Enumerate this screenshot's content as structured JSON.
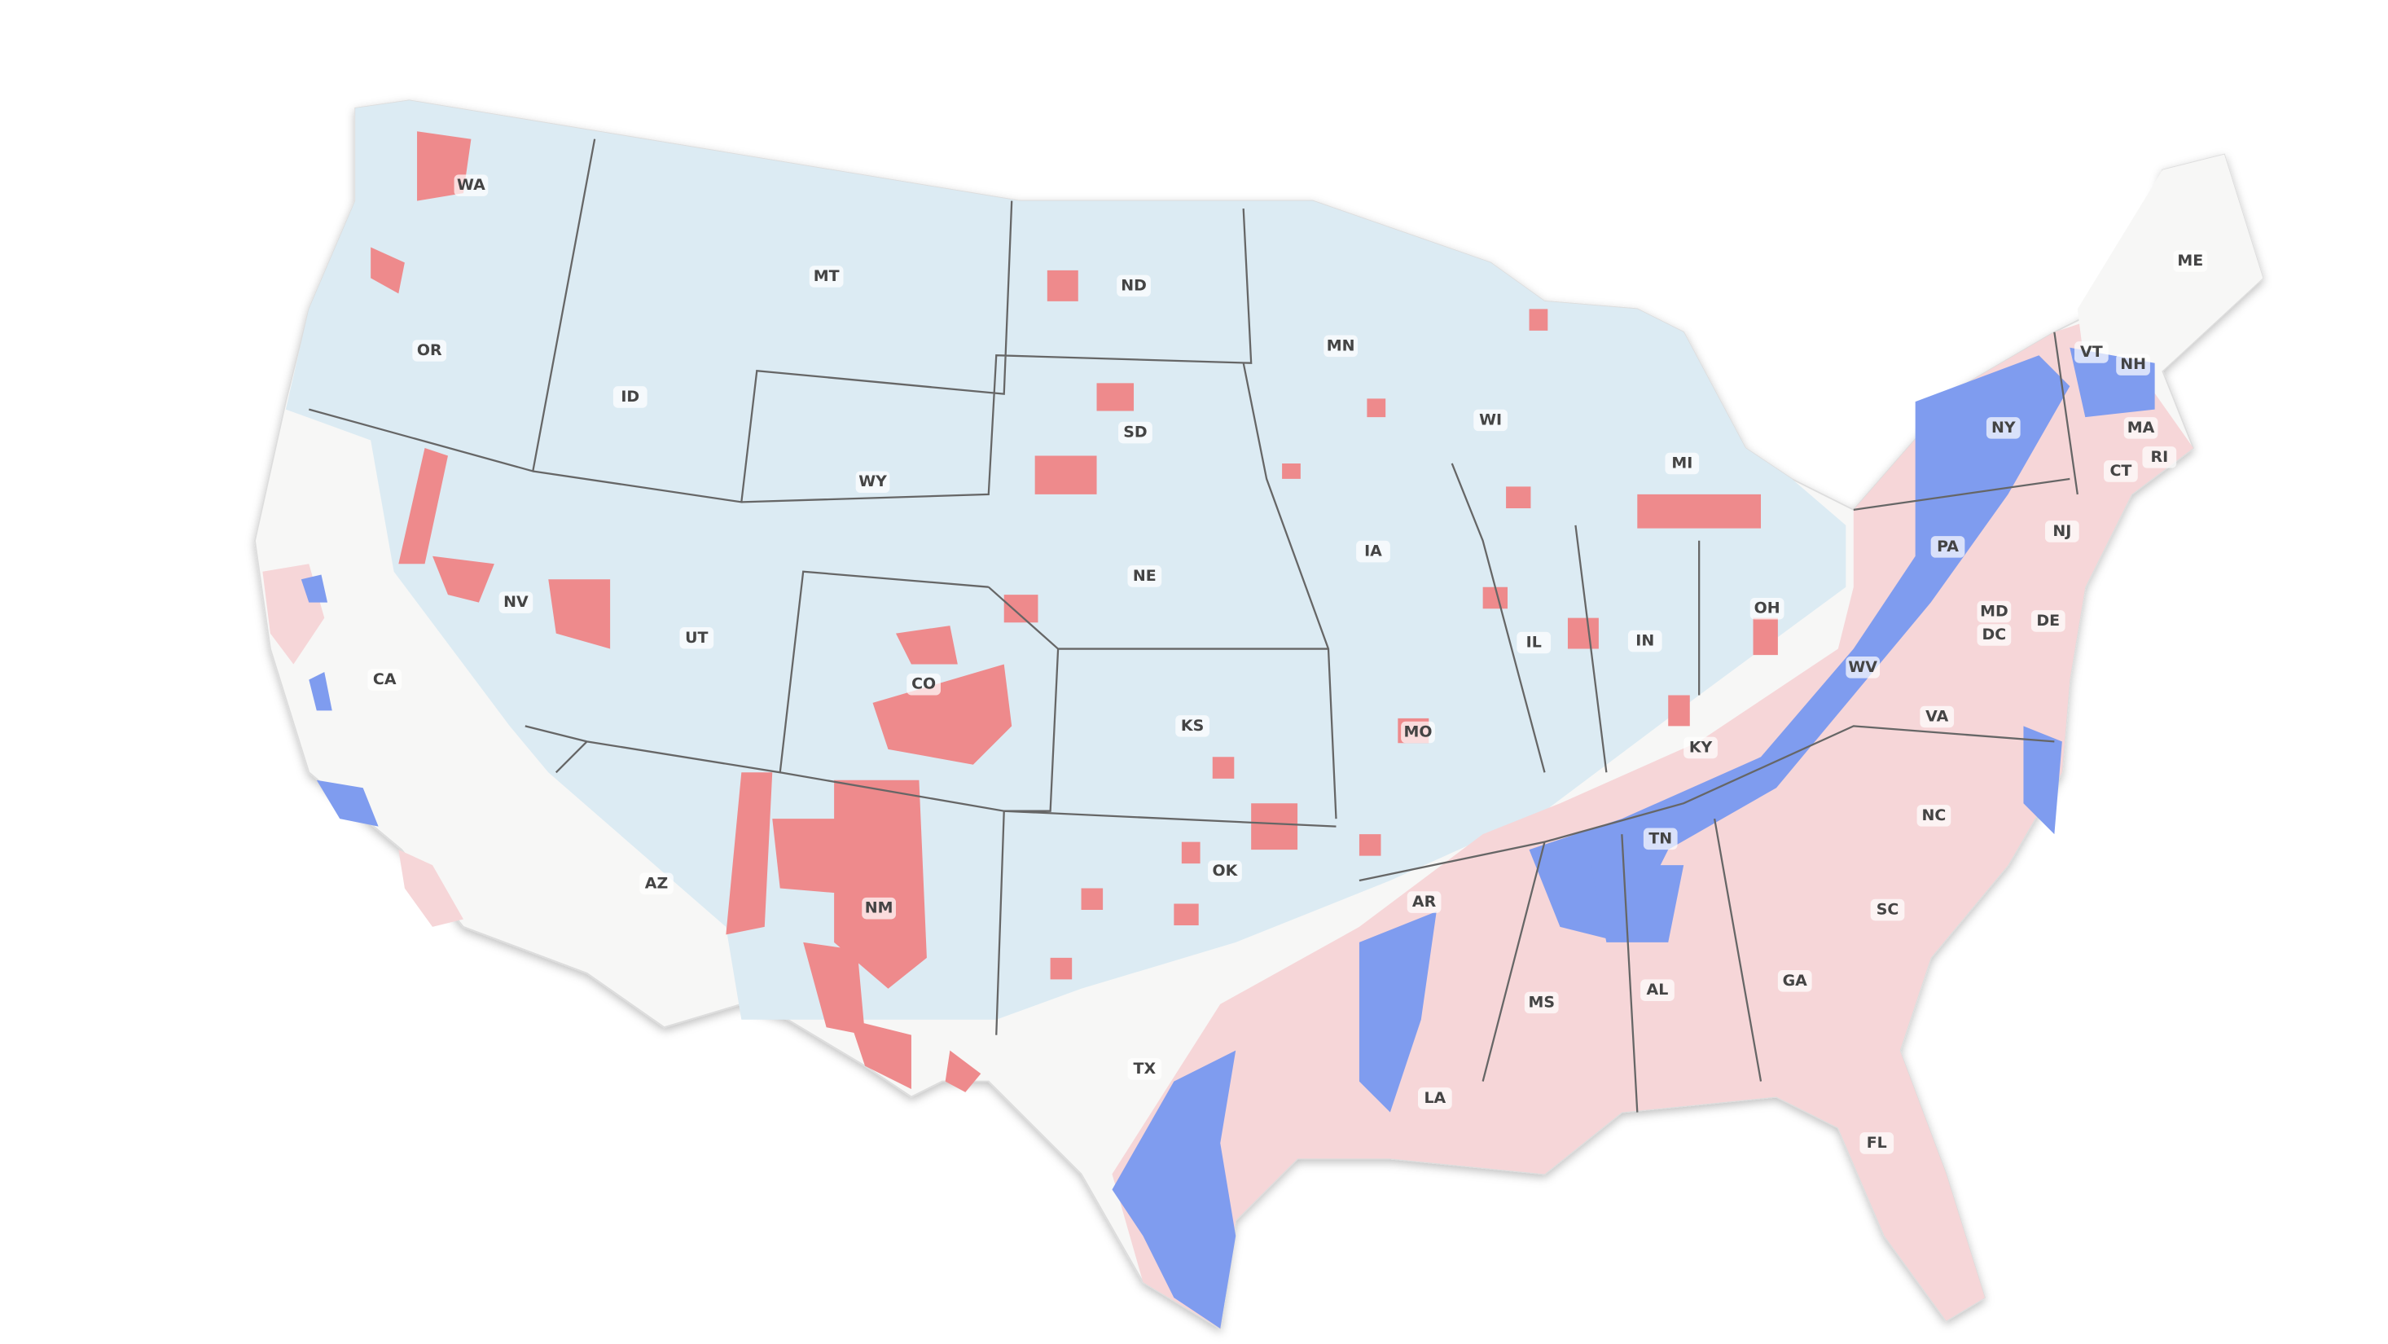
{
  "map": {
    "state_labels": [
      "WA",
      "OR",
      "CA",
      "NV",
      "ID",
      "MT",
      "WY",
      "UT",
      "AZ",
      "CO",
      "NM",
      "ND",
      "SD",
      "NE",
      "KS",
      "OK",
      "TX",
      "MN",
      "IA",
      "MO",
      "AR",
      "LA",
      "WI",
      "IL",
      "MS",
      "MI",
      "IN",
      "OH",
      "KY",
      "TN",
      "AL",
      "GA",
      "FL",
      "SC",
      "NC",
      "WV",
      "VA",
      "PA",
      "NY",
      "VT",
      "NH",
      "ME",
      "MA",
      "CT",
      "RI",
      "NJ",
      "DE",
      "MD",
      "DC"
    ]
  }
}
